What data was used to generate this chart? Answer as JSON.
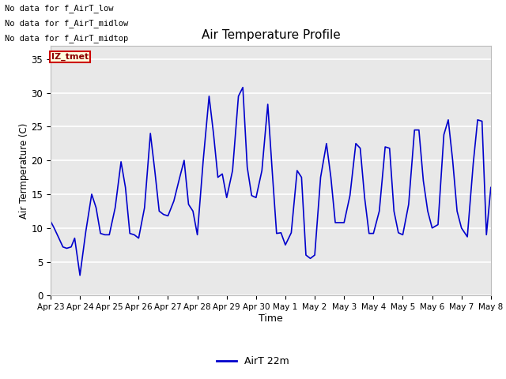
{
  "title": "Air Temperature Profile",
  "xlabel": "Time",
  "ylabel": "Air Termperature (C)",
  "legend_label": "AirT 22m",
  "annotations": [
    "No data for f_AirT_low",
    "No data for f_AirT_midlow",
    "No data for f_AirT_midtop"
  ],
  "annotation_box_text": "IZ_tmet",
  "ylim": [
    0,
    37
  ],
  "yticks": [
    0,
    5,
    10,
    15,
    20,
    25,
    30,
    35
  ],
  "line_color": "#0000cc",
  "background_color": "#ffffff",
  "plot_bg_color": "#e8e8e8",
  "x_labels": [
    "Apr 23",
    "Apr 24",
    "Apr 25",
    "Apr 26",
    "Apr 27",
    "Apr 28",
    "Apr 29",
    "Apr 30",
    "May 1",
    "May 2",
    "May 3",
    "May 4",
    "May 5",
    "May 6",
    "May 7",
    "May 8"
  ],
  "t_values": [
    0.0,
    0.12,
    0.25,
    0.42,
    0.55,
    0.7,
    0.82,
    1.0,
    1.2,
    1.4,
    1.55,
    1.7,
    1.85,
    2.0,
    2.2,
    2.4,
    2.55,
    2.7,
    2.85,
    3.0,
    3.2,
    3.4,
    3.55,
    3.7,
    3.85,
    4.0,
    4.2,
    4.4,
    4.55,
    4.7,
    4.85,
    5.0,
    5.2,
    5.4,
    5.55,
    5.7,
    5.85,
    6.0,
    6.2,
    6.4,
    6.55,
    6.7,
    6.85,
    7.0,
    7.2,
    7.4,
    7.55,
    7.7,
    7.85,
    8.0,
    8.2,
    8.4,
    8.55,
    8.7,
    8.85,
    9.0,
    9.2,
    9.4,
    9.55,
    9.7,
    9.85,
    10.0,
    10.2,
    10.4,
    10.55,
    10.7,
    10.85,
    11.0,
    11.2,
    11.4,
    11.55,
    11.7,
    11.85,
    12.0,
    12.2,
    12.4,
    12.55,
    12.7,
    12.85,
    13.0,
    13.2,
    13.4,
    13.55,
    13.7,
    13.85,
    14.0,
    14.2,
    14.4,
    14.55,
    14.7,
    14.85,
    15.0
  ],
  "y_values": [
    11.0,
    10.0,
    8.8,
    7.2,
    7.0,
    7.2,
    8.5,
    3.0,
    9.5,
    15.0,
    13.0,
    9.2,
    9.0,
    9.0,
    13.0,
    19.8,
    16.0,
    9.2,
    9.0,
    8.5,
    13.0,
    24.0,
    18.5,
    12.5,
    12.0,
    11.8,
    14.0,
    17.5,
    20.0,
    13.5,
    12.5,
    9.0,
    20.0,
    29.5,
    24.0,
    17.5,
    18.0,
    14.5,
    18.5,
    29.5,
    30.8,
    19.0,
    14.8,
    14.5,
    18.5,
    28.3,
    18.5,
    9.2,
    9.3,
    7.5,
    9.3,
    18.5,
    17.5,
    6.0,
    5.5,
    6.0,
    17.5,
    22.5,
    17.5,
    10.8,
    10.8,
    10.8,
    14.8,
    22.5,
    21.8,
    14.5,
    9.2,
    9.2,
    12.5,
    22.0,
    21.8,
    12.5,
    9.3,
    9.0,
    13.5,
    24.5,
    24.5,
    17.0,
    12.5,
    10.0,
    10.5,
    23.8,
    26.0,
    20.0,
    12.5,
    10.0,
    8.7,
    19.5,
    26.0,
    25.8,
    9.0,
    16.0
  ]
}
